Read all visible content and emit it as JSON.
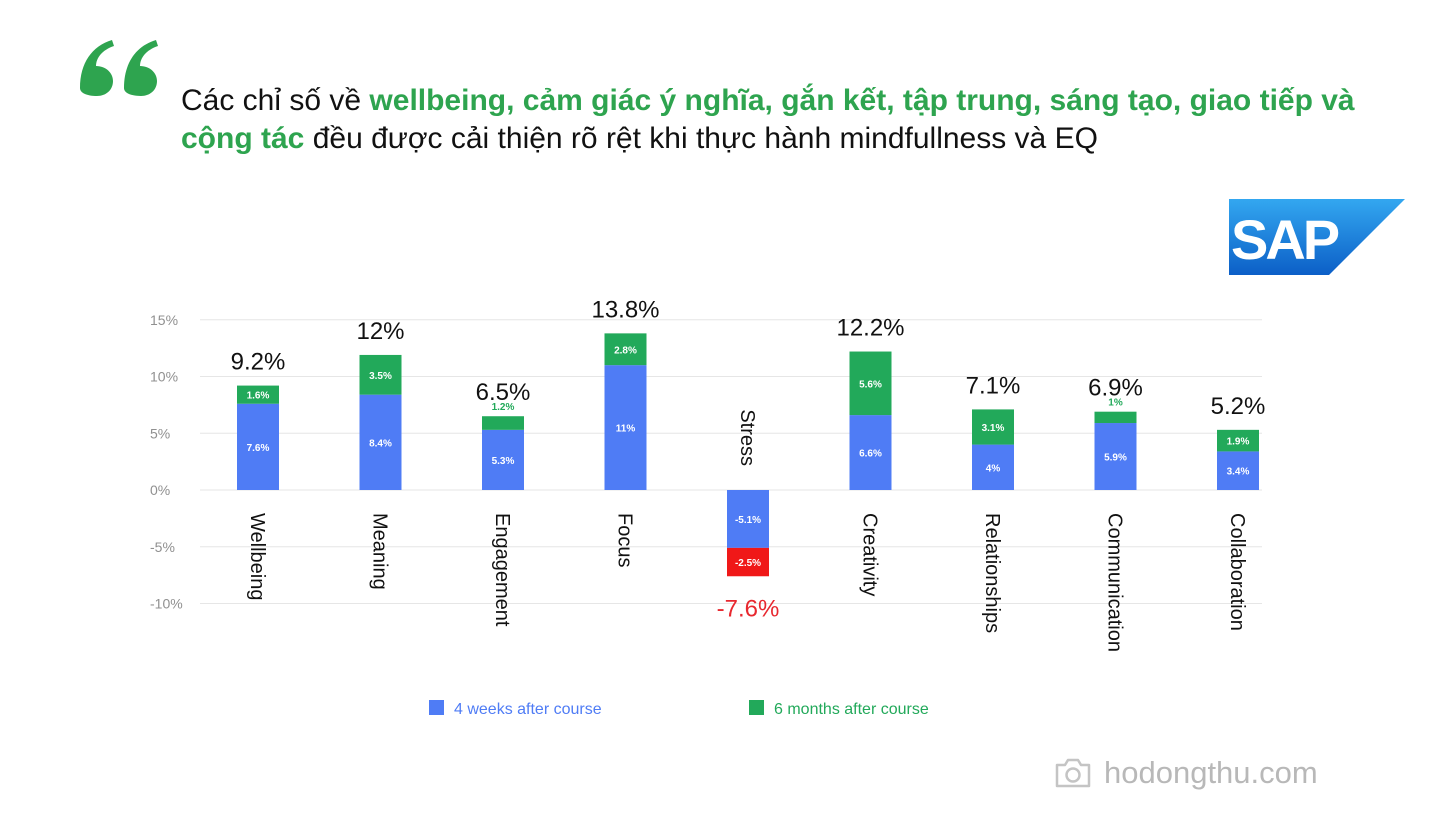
{
  "headline": {
    "part1": "Các chỉ số về ",
    "highlight": "wellbeing, cảm giác ý nghĩa, gắn kết, tập trung, sáng tạo,  giao tiếp và cộng tác",
    "part2": " đều được cải thiện rõ rệt khi thực hành mindfullness và EQ",
    "highlight_color": "#2ea44f"
  },
  "logo": {
    "name": "sap-logo",
    "text": "SAP",
    "registered": "®"
  },
  "watermark": {
    "icon": "camera-icon",
    "text": "hodongthu.com"
  },
  "colors": {
    "blue": "#4f7cf5",
    "green": "#22a95a",
    "red": "#f01818",
    "total_negative": "#e8282f"
  },
  "chart_data": {
    "type": "bar",
    "stacked": true,
    "categories": [
      "Wellbeing",
      "Meaning",
      "Engagement",
      "Focus",
      "Stress",
      "Creativity",
      "Relationships",
      "Communication",
      "Collaboration"
    ],
    "series": [
      {
        "name": "4 weeks after course",
        "values": [
          7.6,
          8.4,
          5.3,
          11,
          -5.1,
          6.6,
          4,
          5.9,
          3.4
        ],
        "labels": [
          "7.6%",
          "8.4%",
          "5.3%",
          "11%",
          "-5.1%",
          "6.6%",
          "4%",
          "5.9%",
          "3.4%"
        ],
        "color": "#4f7cf5"
      },
      {
        "name": "6 months after course",
        "values": [
          1.6,
          3.5,
          1.2,
          2.8,
          -2.5,
          5.6,
          3.1,
          1,
          1.9
        ],
        "labels": [
          "1.6%",
          "3.5%",
          "1.2%",
          "2.8%",
          "-2.5%",
          "5.6%",
          "3.1%",
          "1%",
          "1.9%"
        ],
        "color": "#22a95a",
        "negative_color": "#f01818"
      }
    ],
    "totals": [
      "9.2%",
      "12%",
      "6.5%",
      "13.8%",
      "-7.6%",
      "12.2%",
      "7.1%",
      "6.9%",
      "5.2%"
    ],
    "yticks": [
      15,
      10,
      5,
      0,
      -5,
      -10
    ],
    "ytick_labels": [
      "15%",
      "10%",
      "5%",
      "0%",
      "-5%",
      "-10%"
    ],
    "ylim": [
      -10,
      15
    ],
    "grid": true,
    "legend_position": "bottom"
  }
}
